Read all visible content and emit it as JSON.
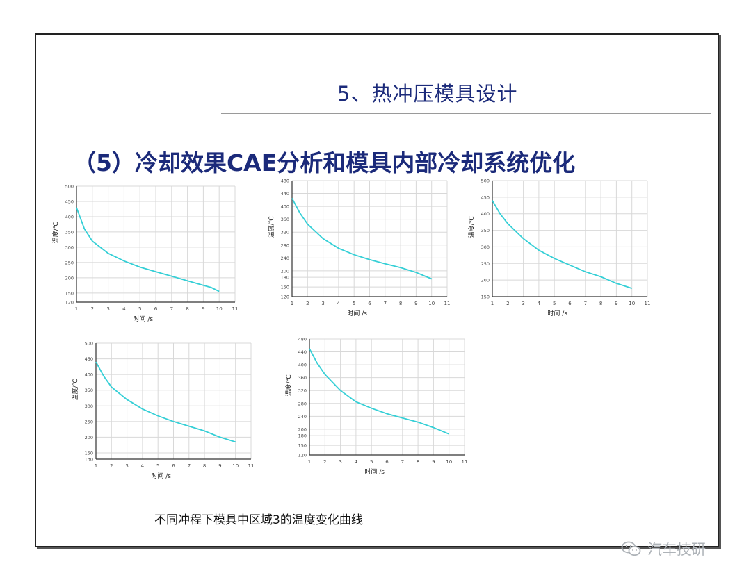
{
  "slide": {
    "title": "5、热冲压模具设计",
    "subtitle": "（5）冷却效果CAE分析和模具内部冷却系统优化",
    "caption": "不同冲程下模具中区域3的温度变化曲线",
    "watermark": "汽车技研",
    "watermark_icon": "wechat-icon"
  },
  "colors": {
    "title": "#1b2a7a",
    "curve": "#35cfd6",
    "grid": "#9a9a9a"
  },
  "chart_data": [
    {
      "type": "line",
      "xlabel": "时间 /s",
      "ylabel": "温度/℃",
      "x_ticks": [
        "1",
        "2",
        "3",
        "4",
        "5",
        "6",
        "7",
        "8",
        "9",
        "10",
        "11"
      ],
      "xlim": [
        1,
        11
      ],
      "y_ticks": [
        "120",
        "150",
        "200",
        "250",
        "300",
        "350",
        "400",
        "450",
        "500"
      ],
      "ylim": [
        120,
        500
      ],
      "series": [
        {
          "x": [
            1,
            1.5,
            2,
            3,
            4,
            5,
            6,
            7,
            8,
            9,
            9.5,
            10
          ],
          "y": [
            430,
            360,
            320,
            280,
            255,
            235,
            220,
            205,
            190,
            175,
            168,
            155
          ]
        }
      ]
    },
    {
      "type": "line",
      "xlabel": "时间 /s",
      "ylabel": "温度/℃",
      "x_ticks": [
        "1",
        "2",
        "3",
        "4",
        "5",
        "6",
        "7",
        "8",
        "9",
        "10",
        "11"
      ],
      "xlim": [
        1,
        11
      ],
      "y_ticks": [
        "120",
        "150",
        "180",
        "200",
        "240",
        "280",
        "320",
        "360",
        "400",
        "440",
        "480"
      ],
      "ylim": [
        120,
        480
      ],
      "series": [
        {
          "x": [
            1,
            1.5,
            2,
            3,
            4,
            5,
            6,
            7,
            8,
            9,
            10
          ],
          "y": [
            425,
            380,
            345,
            300,
            270,
            250,
            235,
            222,
            210,
            195,
            175
          ]
        }
      ]
    },
    {
      "type": "line",
      "xlabel": "时间 /s",
      "ylabel": "温度/℃",
      "x_ticks": [
        "1",
        "2",
        "3",
        "4",
        "5",
        "6",
        "7",
        "8",
        "9",
        "10",
        "11"
      ],
      "xlim": [
        1,
        11
      ],
      "y_ticks": [
        "150",
        "200",
        "250",
        "300",
        "350",
        "400",
        "450",
        "500"
      ],
      "ylim": [
        150,
        500
      ],
      "series": [
        {
          "x": [
            1,
            1.5,
            2,
            3,
            4,
            5,
            6,
            7,
            8,
            9,
            10
          ],
          "y": [
            440,
            400,
            370,
            325,
            290,
            265,
            245,
            225,
            210,
            190,
            175
          ]
        }
      ]
    },
    {
      "type": "line",
      "xlabel": "时间 /s",
      "ylabel": "温度/℃",
      "x_ticks": [
        "1",
        "2",
        "3",
        "4",
        "5",
        "6",
        "7",
        "8",
        "9",
        "10",
        "11"
      ],
      "xlim": [
        1,
        11
      ],
      "y_ticks": [
        "130",
        "150",
        "200",
        "250",
        "300",
        "350",
        "400",
        "450",
        "500"
      ],
      "ylim": [
        130,
        500
      ],
      "series": [
        {
          "x": [
            1,
            1.5,
            2,
            3,
            4,
            5,
            6,
            7,
            8,
            9,
            10
          ],
          "y": [
            440,
            395,
            360,
            320,
            290,
            268,
            250,
            235,
            220,
            200,
            185
          ]
        }
      ]
    },
    {
      "type": "line",
      "xlabel": "时间 /s",
      "ylabel": "温度/℃",
      "x_ticks": [
        "1",
        "2",
        "3",
        "4",
        "5",
        "6",
        "7",
        "8",
        "9",
        "10",
        "11"
      ],
      "xlim": [
        1,
        11
      ],
      "y_ticks": [
        "120",
        "150",
        "180",
        "200",
        "240",
        "280",
        "320",
        "360",
        "400",
        "440",
        "480"
      ],
      "ylim": [
        120,
        480
      ],
      "series": [
        {
          "x": [
            1,
            1.5,
            2,
            3,
            4,
            5,
            6,
            7,
            8,
            9,
            10
          ],
          "y": [
            450,
            405,
            370,
            320,
            285,
            265,
            248,
            235,
            222,
            205,
            185
          ]
        }
      ]
    }
  ]
}
